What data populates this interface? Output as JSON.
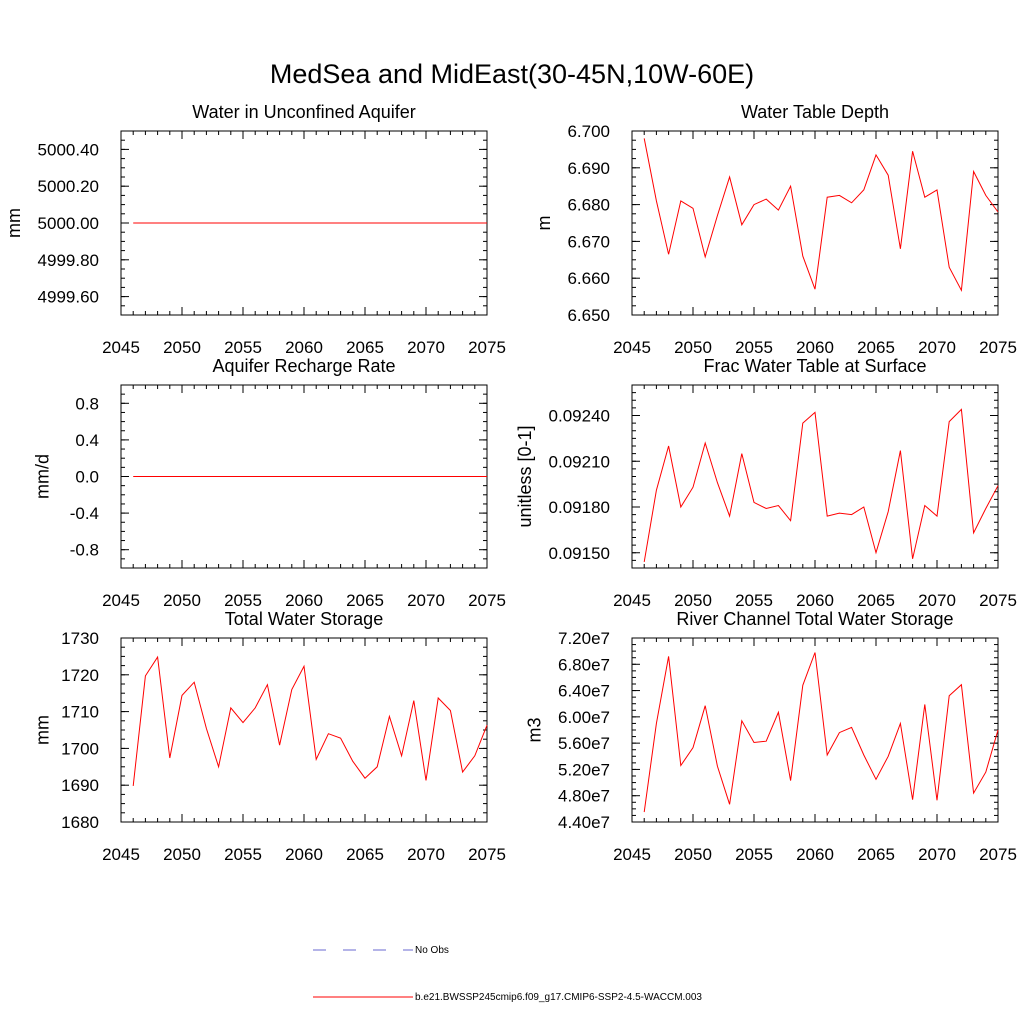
{
  "figure_title": "MedSea and MidEast(30-45N,10W-60E)",
  "colors": {
    "model": "#ff0000",
    "obs": "#6a6ad0",
    "axis": "#000000"
  },
  "legend": {
    "obs_label": "No Obs",
    "model_label": "b.e21.BWSSP245cmip6.f09_g17.CMIP6-SSP2-4.5-WACCM.003"
  },
  "chart_data": [
    {
      "type": "line",
      "title": "Water in Unconfined Aquifer",
      "ylabel": "mm",
      "xlabel": "",
      "xlim": [
        2045,
        2075
      ],
      "ylim": [
        4999.5,
        5000.5
      ],
      "xticks": [
        2045,
        2050,
        2055,
        2060,
        2065,
        2070,
        2075
      ],
      "xtick_labels": [
        "2045",
        "2050",
        "2055",
        "2060",
        "2065",
        "2070",
        "2075"
      ],
      "yticks": [
        4999.6,
        4999.8,
        5000.0,
        5000.2,
        5000.4
      ],
      "ytick_labels": [
        "4999.60",
        "4999.80",
        "5000.00",
        "5000.20",
        "5000.40"
      ],
      "yminor": 0.05,
      "x": [
        2046,
        2075
      ],
      "series": [
        {
          "name": "b.e21.BWSSP245cmip6.f09_g17.CMIP6-SSP2-4.5-WACCM.003",
          "values": [
            5000.0,
            5000.0
          ]
        }
      ]
    },
    {
      "type": "line",
      "title": "Water Table Depth",
      "ylabel": "m",
      "xlabel": "",
      "xlim": [
        2045,
        2075
      ],
      "ylim": [
        6.65,
        6.7
      ],
      "xticks": [
        2045,
        2050,
        2055,
        2060,
        2065,
        2070,
        2075
      ],
      "xtick_labels": [
        "2045",
        "2050",
        "2055",
        "2060",
        "2065",
        "2070",
        "2075"
      ],
      "yticks": [
        6.65,
        6.66,
        6.67,
        6.68,
        6.69,
        6.7
      ],
      "ytick_labels": [
        "6.650",
        "6.660",
        "6.670",
        "6.680",
        "6.690",
        "6.700"
      ],
      "yminor": 0.0025,
      "x": [
        2046,
        2047,
        2048,
        2049,
        2050,
        2051,
        2052,
        2053,
        2054,
        2055,
        2056,
        2057,
        2058,
        2059,
        2060,
        2061,
        2062,
        2063,
        2064,
        2065,
        2066,
        2067,
        2068,
        2069,
        2070,
        2071,
        2072,
        2073,
        2074,
        2075
      ],
      "series": [
        {
          "name": "b.e21.BWSSP245cmip6.f09_g17.CMIP6-SSP2-4.5-WACCM.003",
          "values": [
            6.698,
            6.681,
            6.6665,
            6.681,
            6.679,
            6.6658,
            6.677,
            6.6875,
            6.6745,
            6.68,
            6.6815,
            6.6785,
            6.685,
            6.666,
            6.657,
            6.682,
            6.6825,
            6.6805,
            6.684,
            6.6935,
            6.688,
            6.668,
            6.6945,
            6.682,
            6.684,
            6.663,
            6.6567,
            6.689,
            6.6825,
            6.678
          ]
        }
      ]
    },
    {
      "type": "line",
      "title": "Aquifer Recharge Rate",
      "ylabel": "mm/d",
      "xlabel": "",
      "xlim": [
        2045,
        2075
      ],
      "ylim": [
        -1.0,
        1.0
      ],
      "xticks": [
        2045,
        2050,
        2055,
        2060,
        2065,
        2070,
        2075
      ],
      "xtick_labels": [
        "2045",
        "2050",
        "2055",
        "2060",
        "2065",
        "2070",
        "2075"
      ],
      "yticks": [
        -0.8,
        -0.4,
        0.0,
        0.4,
        0.8
      ],
      "ytick_labels": [
        "-0.8",
        "-0.4",
        "0.0",
        "0.4",
        "0.8"
      ],
      "yminor": 0.1,
      "x": [
        2046,
        2075
      ],
      "series": [
        {
          "name": "b.e21.BWSSP245cmip6.f09_g17.CMIP6-SSP2-4.5-WACCM.003",
          "values": [
            0.0,
            0.0
          ]
        }
      ]
    },
    {
      "type": "line",
      "title": "Frac Water Table at Surface",
      "ylabel": "unitless [0-1]",
      "xlabel": "",
      "xlim": [
        2045,
        2075
      ],
      "ylim": [
        0.0914,
        0.0926
      ],
      "xticks": [
        2045,
        2050,
        2055,
        2060,
        2065,
        2070,
        2075
      ],
      "xtick_labels": [
        "2045",
        "2050",
        "2055",
        "2060",
        "2065",
        "2070",
        "2075"
      ],
      "yticks": [
        0.0915,
        0.0918,
        0.0921,
        0.0924
      ],
      "ytick_labels": [
        "0.09150",
        "0.09180",
        "0.09210",
        "0.09240"
      ],
      "yminor": 5e-05,
      "x": [
        2046,
        2047,
        2048,
        2049,
        2050,
        2051,
        2052,
        2053,
        2054,
        2055,
        2056,
        2057,
        2058,
        2059,
        2060,
        2061,
        2062,
        2063,
        2064,
        2065,
        2066,
        2067,
        2068,
        2069,
        2070,
        2071,
        2072,
        2073,
        2074,
        2075
      ],
      "series": [
        {
          "name": "b.e21.BWSSP245cmip6.f09_g17.CMIP6-SSP2-4.5-WACCM.003",
          "values": [
            0.09144,
            0.09191,
            0.0922,
            0.0918,
            0.09193,
            0.09222,
            0.09196,
            0.09174,
            0.09215,
            0.09183,
            0.09179,
            0.09181,
            0.09171,
            0.09235,
            0.09242,
            0.09174,
            0.09176,
            0.09175,
            0.0918,
            0.0915,
            0.09177,
            0.09217,
            0.09146,
            0.09181,
            0.09174,
            0.09236,
            0.09244,
            0.09163,
            0.09179,
            0.09194
          ]
        }
      ]
    },
    {
      "type": "line",
      "title": "Total Water Storage",
      "ylabel": "mm",
      "xlabel": "",
      "xlim": [
        2045,
        2075
      ],
      "ylim": [
        1680,
        1730
      ],
      "xticks": [
        2045,
        2050,
        2055,
        2060,
        2065,
        2070,
        2075
      ],
      "xtick_labels": [
        "2045",
        "2050",
        "2055",
        "2060",
        "2065",
        "2070",
        "2075"
      ],
      "yticks": [
        1680,
        1690,
        1700,
        1710,
        1720,
        1730
      ],
      "ytick_labels": [
        "1680",
        "1690",
        "1700",
        "1710",
        "1720",
        "1730"
      ],
      "yminor": 2.5,
      "x": [
        2046,
        2047,
        2048,
        2049,
        2050,
        2051,
        2052,
        2053,
        2054,
        2055,
        2056,
        2057,
        2058,
        2059,
        2060,
        2061,
        2062,
        2063,
        2064,
        2065,
        2066,
        2067,
        2068,
        2069,
        2070,
        2071,
        2072,
        2073,
        2074,
        2075
      ],
      "series": [
        {
          "name": "b.e21.BWSSP245cmip6.f09_g17.CMIP6-SSP2-4.5-WACCM.003",
          "values": [
            1689.8,
            1719.7,
            1724.8,
            1697.4,
            1714.4,
            1718.0,
            1705.4,
            1695.0,
            1711.0,
            1707.0,
            1711.0,
            1717.3,
            1700.9,
            1716.0,
            1722.3,
            1697.0,
            1704.0,
            1702.8,
            1696.5,
            1691.9,
            1695.0,
            1708.7,
            1698.0,
            1713.0,
            1691.3,
            1713.7,
            1710.3,
            1693.6,
            1698.0,
            1706.3
          ]
        }
      ]
    },
    {
      "type": "line",
      "title": "River Channel Total Water Storage",
      "ylabel": "m3",
      "xlabel": "",
      "xlim": [
        2045,
        2075
      ],
      "ylim": [
        44000000,
        72000000
      ],
      "xticks": [
        2045,
        2050,
        2055,
        2060,
        2065,
        2070,
        2075
      ],
      "xtick_labels": [
        "2045",
        "2050",
        "2055",
        "2060",
        "2065",
        "2070",
        "2075"
      ],
      "yticks": [
        44000000,
        48000000,
        52000000,
        56000000,
        60000000,
        64000000,
        68000000,
        72000000
      ],
      "ytick_labels": [
        "4.40e7",
        "4.80e7",
        "5.20e7",
        "5.60e7",
        "6.00e7",
        "6.40e7",
        "6.80e7",
        "7.20e7"
      ],
      "yminor": 1000000,
      "x": [
        2046,
        2047,
        2048,
        2049,
        2050,
        2051,
        2052,
        2053,
        2054,
        2055,
        2056,
        2057,
        2058,
        2059,
        2060,
        2061,
        2062,
        2063,
        2064,
        2065,
        2066,
        2067,
        2068,
        2069,
        2070,
        2071,
        2072,
        2073,
        2074,
        2075
      ],
      "series": [
        {
          "name": "b.e21.BWSSP245cmip6.f09_g17.CMIP6-SSP2-4.5-WACCM.003",
          "values": [
            45500000,
            59000000,
            69200000,
            52600000,
            55300000,
            61700000,
            52500000,
            46700000,
            59400000,
            56100000,
            56300000,
            60700000,
            50300000,
            64800000,
            69800000,
            54200000,
            57600000,
            58400000,
            54200000,
            50500000,
            54000000,
            59000000,
            47400000,
            61900000,
            47300000,
            63200000,
            64900000,
            48400000,
            51600000,
            58000000
          ]
        }
      ]
    }
  ]
}
